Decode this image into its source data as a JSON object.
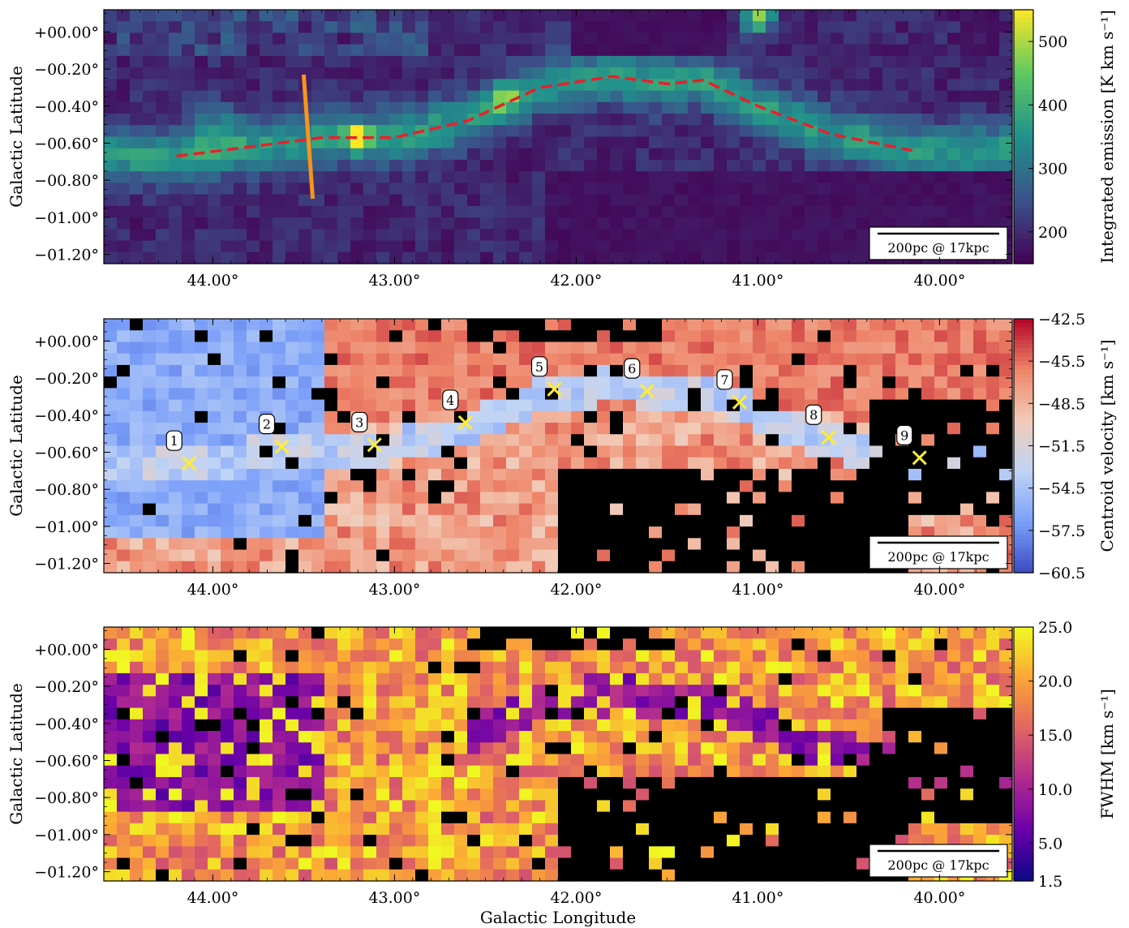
{
  "chart_data": [
    {
      "type": "heatmap",
      "panel": "integrated-emission",
      "xlabel": "",
      "ylabel": "Galactic Latitude",
      "xlim": [
        44.6,
        39.6
      ],
      "ylim": [
        -1.25,
        0.12
      ],
      "xticks": [
        44.0,
        43.0,
        42.0,
        41.0,
        40.0
      ],
      "xticklabels": [
        "44.00°",
        "43.00°",
        "42.00°",
        "41.00°",
        "40.00°"
      ],
      "yticks": [
        0.0,
        -0.2,
        -0.4,
        -0.6,
        -0.8,
        -1.0,
        -1.2
      ],
      "yticklabels": [
        "+00.00°",
        "−00.20°",
        "−00.40°",
        "−00.60°",
        "−00.80°",
        "−01.00°",
        "−01.20°"
      ],
      "colorbar": {
        "label": "Integrated emission [K km s⁻¹]",
        "colormap": "viridis",
        "range": [
          150,
          550
        ],
        "ticks": [
          200,
          300,
          400,
          500
        ],
        "ticklabels": [
          "200",
          "300",
          "400",
          "500"
        ],
        "colors": [
          "#440154",
          "#3b528b",
          "#21918c",
          "#5ec962",
          "#fde725"
        ]
      },
      "overlays": {
        "ridge_line": {
          "style": "dashed",
          "color": "#e8202a",
          "x": [
            44.2,
            43.8,
            43.4,
            43.0,
            42.6,
            42.2,
            41.8,
            41.5,
            41.3,
            41.0,
            40.6,
            40.15
          ],
          "y": [
            -0.67,
            -0.62,
            -0.57,
            -0.57,
            -0.48,
            -0.3,
            -0.24,
            -0.28,
            -0.26,
            -0.4,
            -0.55,
            -0.64
          ]
        },
        "cut_line": {
          "color": "#f7941d",
          "x": [
            43.5,
            43.45
          ],
          "y": [
            -0.23,
            -0.9
          ]
        }
      },
      "scalebar": {
        "label": "200pc @ 17kpc",
        "position": "lower-right"
      }
    },
    {
      "type": "heatmap",
      "panel": "centroid-velocity",
      "xlabel": "",
      "ylabel": "Galactic Latitude",
      "xlim": [
        44.6,
        39.6
      ],
      "ylim": [
        -1.25,
        0.12
      ],
      "xticks": [
        44.0,
        43.0,
        42.0,
        41.0,
        40.0
      ],
      "xticklabels": [
        "44.00°",
        "43.00°",
        "42.00°",
        "41.00°",
        "40.00°"
      ],
      "yticks": [
        0.0,
        -0.2,
        -0.4,
        -0.6,
        -0.8,
        -1.0,
        -1.2
      ],
      "yticklabels": [
        "+00.00°",
        "−00.20°",
        "−00.40°",
        "−00.60°",
        "−00.80°",
        "−01.00°",
        "−01.20°"
      ],
      "colorbar": {
        "label": "Centroid velocity [km s⁻¹]",
        "colormap": "coolwarm",
        "range": [
          -60.5,
          -42.5
        ],
        "ticks": [
          -42.5,
          -45.5,
          -48.5,
          -51.5,
          -54.5,
          -57.5,
          -60.5
        ],
        "ticklabels": [
          "−42.5",
          "−45.5",
          "−48.5",
          "−51.5",
          "−54.5",
          "−57.5",
          "−60.5"
        ],
        "colors": [
          "#3b4cc0",
          "#7b9ff9",
          "#c0d4f5",
          "#f2cbb7",
          "#ee8468",
          "#b40426"
        ]
      },
      "markers": [
        {
          "label": "1",
          "x": 44.13,
          "y": -0.66
        },
        {
          "label": "2",
          "x": 43.62,
          "y": -0.57
        },
        {
          "label": "3",
          "x": 43.11,
          "y": -0.56
        },
        {
          "label": "4",
          "x": 42.61,
          "y": -0.44
        },
        {
          "label": "5",
          "x": 42.12,
          "y": -0.26
        },
        {
          "label": "6",
          "x": 41.61,
          "y": -0.27
        },
        {
          "label": "7",
          "x": 41.1,
          "y": -0.33
        },
        {
          "label": "8",
          "x": 40.61,
          "y": -0.52
        },
        {
          "label": "9",
          "x": 40.11,
          "y": -0.63
        }
      ],
      "marker_color": "#ffee33",
      "scalebar": {
        "label": "200pc @ 17kpc",
        "position": "lower-right"
      }
    },
    {
      "type": "heatmap",
      "panel": "fwhm",
      "xlabel": "Galactic Longitude",
      "ylabel": "Galactic Latitude",
      "xlim": [
        44.6,
        39.6
      ],
      "ylim": [
        -1.25,
        0.12
      ],
      "xticks": [
        44.0,
        43.0,
        42.0,
        41.0,
        40.0
      ],
      "xticklabels": [
        "44.00°",
        "43.00°",
        "42.00°",
        "41.00°",
        "40.00°"
      ],
      "yticks": [
        0.0,
        -0.2,
        -0.4,
        -0.6,
        -0.8,
        -1.0,
        -1.2
      ],
      "yticklabels": [
        "+00.00°",
        "−00.20°",
        "−00.40°",
        "−00.60°",
        "−00.80°",
        "−01.00°",
        "−01.20°"
      ],
      "colorbar": {
        "label": "FWHM [km s⁻¹]",
        "colormap": "plasma",
        "range": [
          1.5,
          25.0
        ],
        "ticks": [
          25.0,
          20.0,
          15.0,
          10.0,
          5.0,
          1.5
        ],
        "ticklabels": [
          "25.0",
          "20.0",
          "15.0",
          "10.0",
          "5.0",
          "1.5"
        ],
        "colors": [
          "#0d0887",
          "#6a00a8",
          "#b12a90",
          "#e16462",
          "#fca636",
          "#f0f921"
        ]
      },
      "scalebar": {
        "label": "200pc @ 17kpc",
        "position": "lower-right"
      }
    }
  ]
}
